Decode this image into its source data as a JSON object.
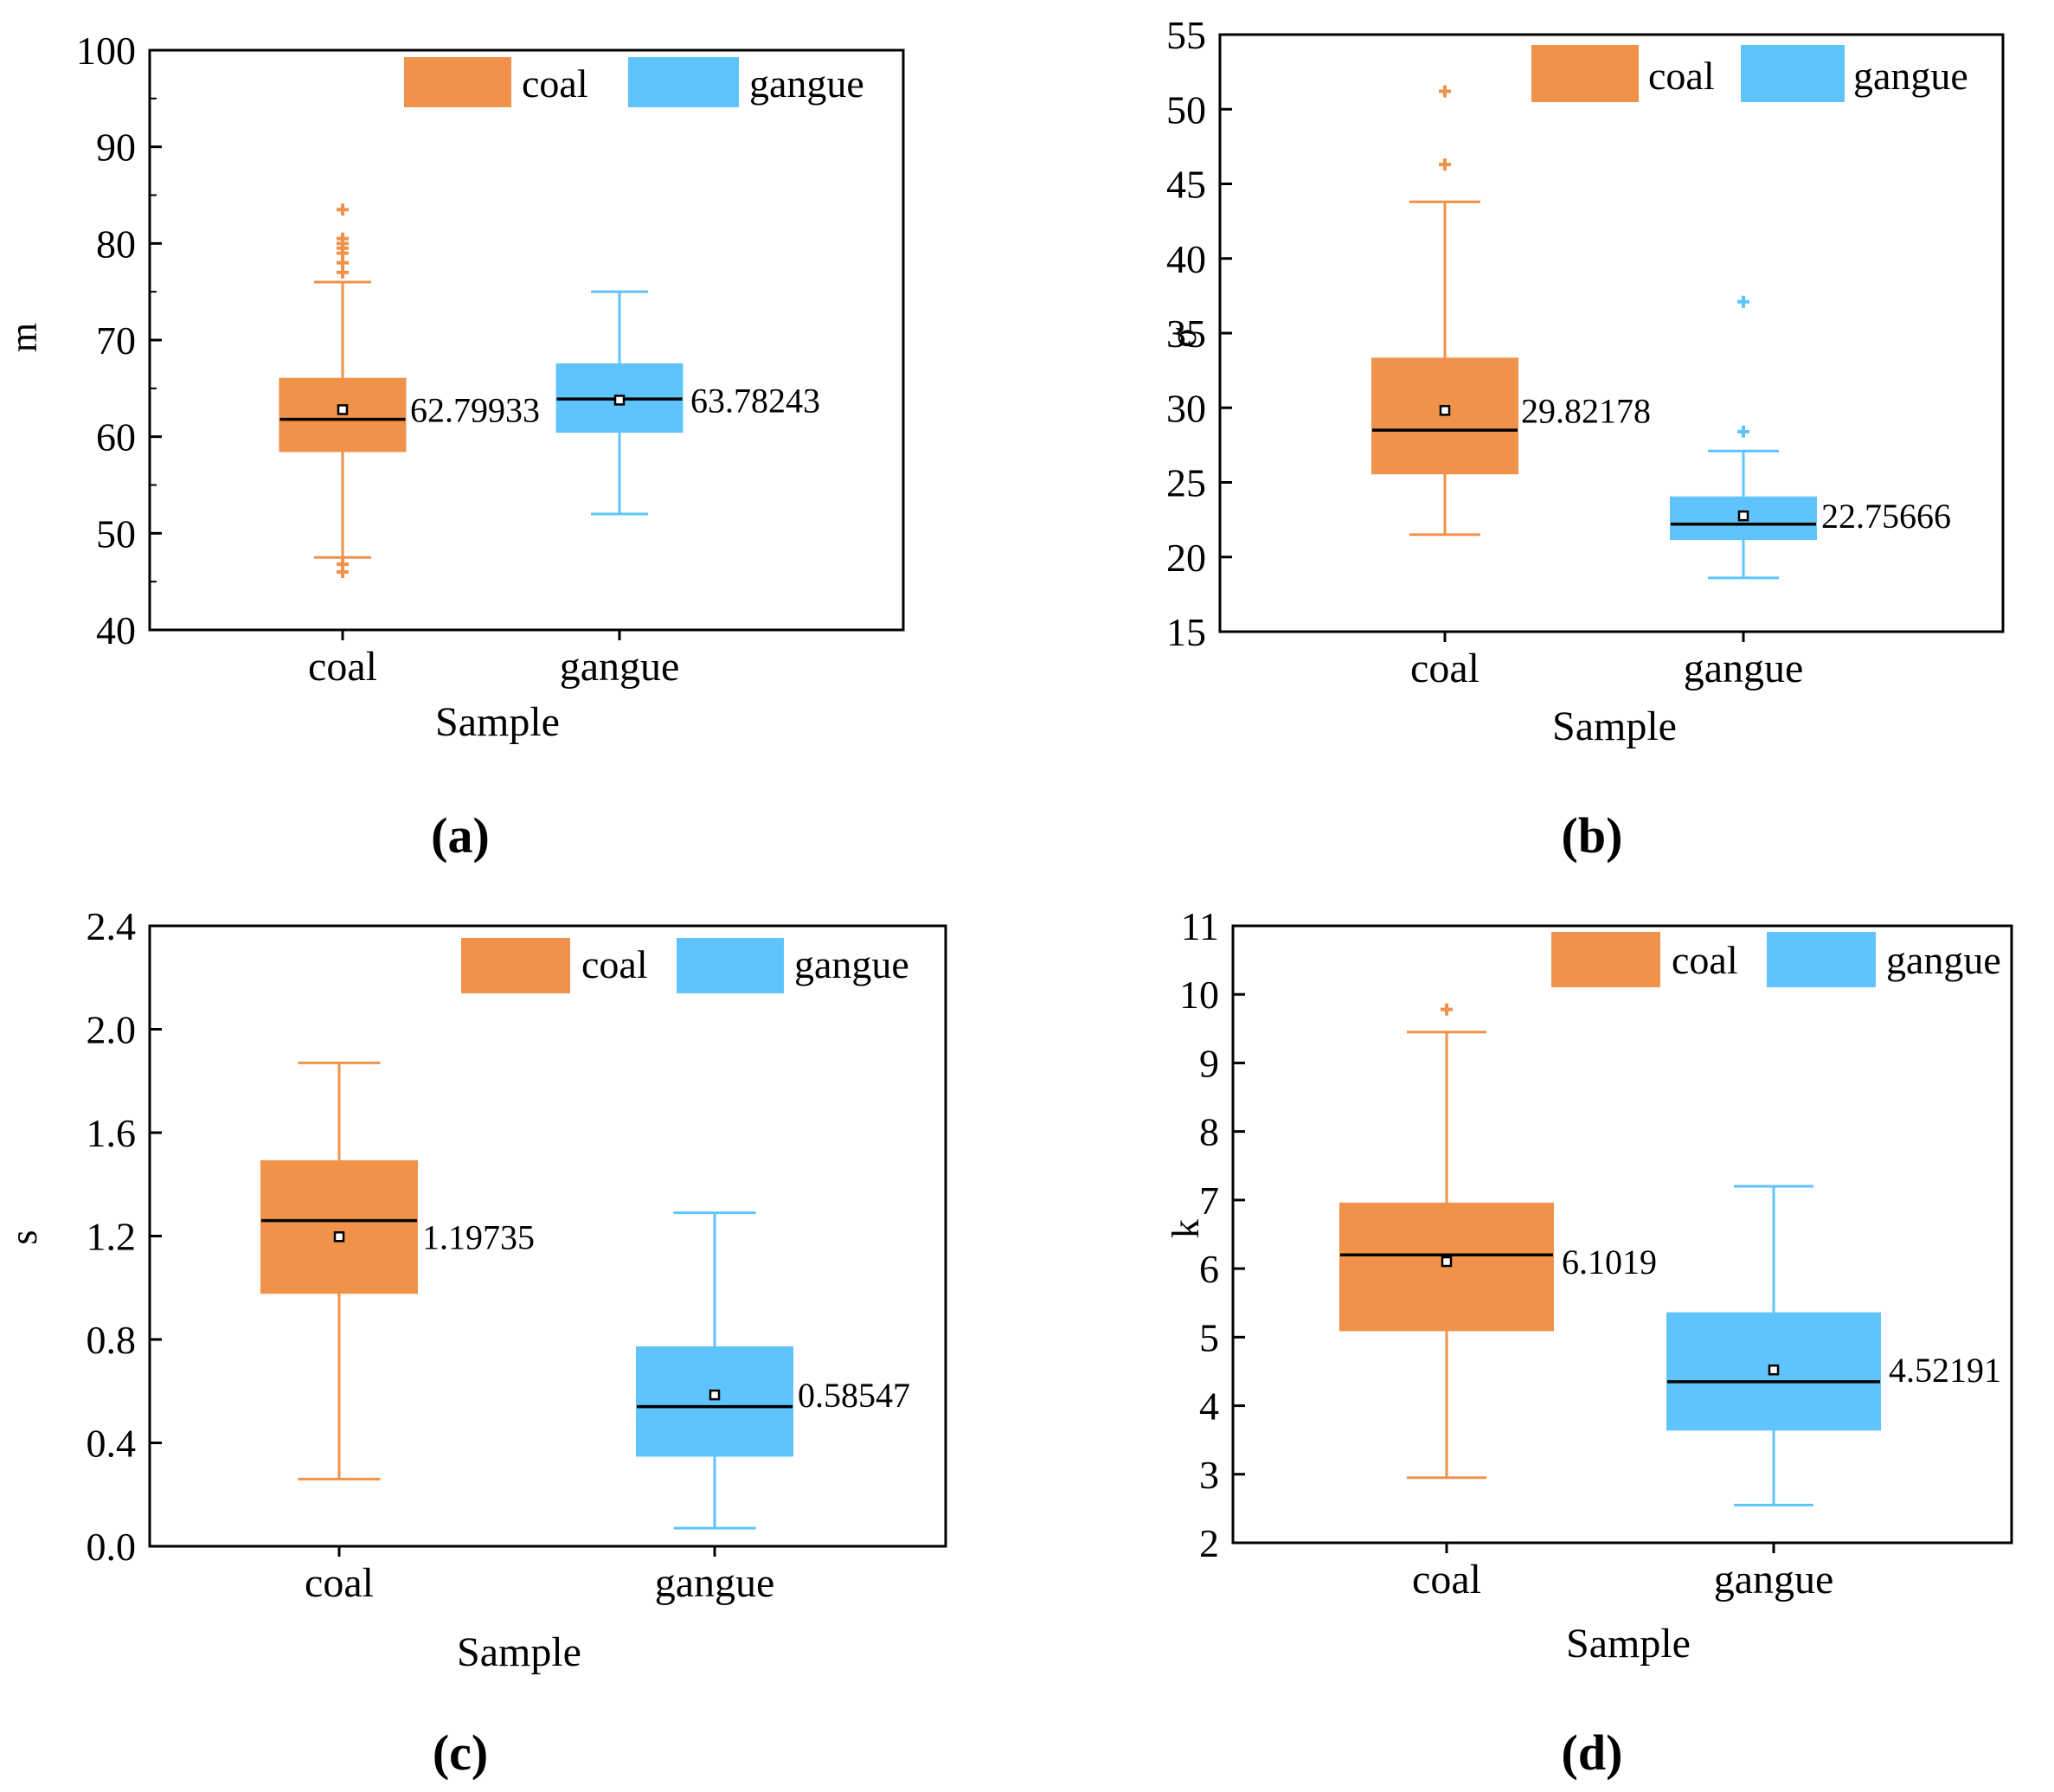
{
  "colors": {
    "coal": "#F0924A",
    "gangue": "#5EC4FB",
    "axis": "#000000"
  },
  "chart_data": [
    {
      "type": "box",
      "panel_label": "(a)",
      "ylabel": "m",
      "xlabel": "Sample",
      "categories": [
        "coal",
        "gangue"
      ],
      "legend": [
        "coal",
        "gangue"
      ],
      "ylim": [
        40,
        100
      ],
      "yticks": [
        40,
        50,
        60,
        70,
        80,
        90,
        100
      ],
      "ytick_labels": [
        "40",
        "50",
        "60",
        "70",
        "80",
        "90",
        "100"
      ],
      "boxes": [
        {
          "name": "coal",
          "q1": 58.5,
          "median": 61.8,
          "q3": 66,
          "whisker_low": 47.5,
          "whisker_high": 76,
          "mean": 62.79933,
          "mean_label": "62.79933",
          "outliers": [
            46,
            46.8,
            77,
            78,
            79,
            79.5,
            80,
            80.5,
            83.5
          ]
        },
        {
          "name": "gangue",
          "q1": 60.5,
          "median": 63.9,
          "q3": 67.5,
          "whisker_low": 52,
          "whisker_high": 75,
          "mean": 63.78243,
          "mean_label": "63.78243",
          "outliers": []
        }
      ]
    },
    {
      "type": "box",
      "panel_label": "(b)",
      "ylabel": "σ",
      "xlabel": "Sample",
      "categories": [
        "coal",
        "gangue"
      ],
      "legend": [
        "coal",
        "gangue"
      ],
      "ylim": [
        15,
        55
      ],
      "yticks": [
        15,
        20,
        25,
        30,
        35,
        40,
        45,
        50,
        55
      ],
      "ytick_labels": [
        "15",
        "20",
        "25",
        "30",
        "35",
        "40",
        "45",
        "50",
        "55"
      ],
      "boxes": [
        {
          "name": "coal",
          "q1": 25.6,
          "median": 28.5,
          "q3": 33.3,
          "whisker_low": 21.5,
          "whisker_high": 43.8,
          "mean": 29.82178,
          "mean_label": "29.82178",
          "outliers": [
            46.3,
            51.2
          ]
        },
        {
          "name": "gangue",
          "q1": 21.2,
          "median": 22.2,
          "q3": 24,
          "whisker_low": 18.6,
          "whisker_high": 27.1,
          "mean": 22.75666,
          "mean_label": "22.75666",
          "outliers": [
            28.4,
            37.1
          ]
        }
      ]
    },
    {
      "type": "box",
      "panel_label": "(c)",
      "ylabel": "s",
      "xlabel": "Sample",
      "categories": [
        "coal",
        "gangue"
      ],
      "legend": [
        "coal",
        "gangue"
      ],
      "ylim": [
        0,
        2.4
      ],
      "yticks": [
        0,
        0.4,
        0.8,
        1.2,
        1.6,
        2.0,
        2.4
      ],
      "ytick_labels": [
        "0.0",
        "0.4",
        "0.8",
        "1.2",
        "1.6",
        "2.0",
        "2.4"
      ],
      "boxes": [
        {
          "name": "coal",
          "q1": 0.98,
          "median": 1.26,
          "q3": 1.49,
          "whisker_low": 0.26,
          "whisker_high": 1.87,
          "mean": 1.19735,
          "mean_label": "1.19735",
          "outliers": []
        },
        {
          "name": "gangue",
          "q1": 0.35,
          "median": 0.54,
          "q3": 0.77,
          "whisker_low": 0.07,
          "whisker_high": 1.29,
          "mean": 0.58547,
          "mean_label": "0.58547",
          "outliers": []
        }
      ]
    },
    {
      "type": "box",
      "panel_label": "(d)",
      "ylabel": "k",
      "xlabel": "Sample",
      "categories": [
        "coal",
        "gangue"
      ],
      "legend": [
        "coal",
        "gangue"
      ],
      "ylim": [
        2,
        11
      ],
      "yticks": [
        2,
        3,
        4,
        5,
        6,
        7,
        8,
        9,
        10,
        11
      ],
      "ytick_labels": [
        "2",
        "3",
        "4",
        "5",
        "6",
        "7",
        "8",
        "9",
        "10",
        "11"
      ],
      "boxes": [
        {
          "name": "coal",
          "q1": 5.1,
          "median": 6.2,
          "q3": 6.95,
          "whisker_low": 2.95,
          "whisker_high": 9.45,
          "mean": 6.1019,
          "mean_label": "6.1019",
          "outliers": [
            9.78
          ]
        },
        {
          "name": "gangue",
          "q1": 3.65,
          "median": 4.35,
          "q3": 5.35,
          "whisker_low": 2.55,
          "whisker_high": 7.2,
          "mean": 4.52191,
          "mean_label": "4.52191",
          "outliers": []
        }
      ]
    }
  ]
}
